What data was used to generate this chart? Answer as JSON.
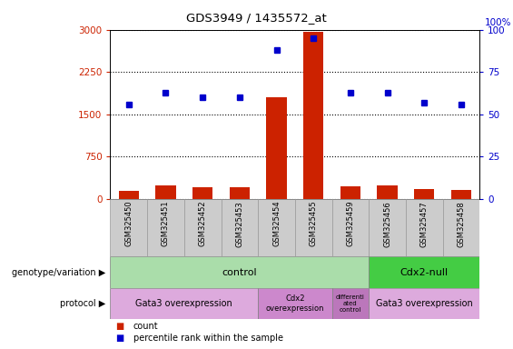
{
  "title": "GDS3949 / 1435572_at",
  "samples": [
    "GSM325450",
    "GSM325451",
    "GSM325452",
    "GSM325453",
    "GSM325454",
    "GSM325455",
    "GSM325459",
    "GSM325456",
    "GSM325457",
    "GSM325458"
  ],
  "count": [
    150,
    245,
    215,
    215,
    1810,
    2960,
    230,
    240,
    175,
    155
  ],
  "percentile": [
    56,
    63,
    60,
    60,
    88,
    95,
    63,
    63,
    57,
    56
  ],
  "ylim_left": [
    0,
    3000
  ],
  "ylim_right": [
    0,
    100
  ],
  "yticks_left": [
    0,
    750,
    1500,
    2250,
    3000
  ],
  "yticks_right": [
    0,
    25,
    50,
    75,
    100
  ],
  "bar_color": "#cc2200",
  "dot_color": "#0000cc",
  "bg_color": "#ffffff",
  "genotype_control_color": "#aaddaa",
  "genotype_cdx2_color": "#44cc44",
  "protocol_gata3_color": "#ddaadd",
  "protocol_cdx2_color": "#cc88cc",
  "protocol_diff_color": "#bb77bb",
  "legend_count_label": "count",
  "legend_pct_label": "percentile rank within the sample",
  "xlabel_genotype": "genotype/variation",
  "xlabel_protocol": "protocol",
  "tick_area_color": "#cccccc",
  "tick_border_color": "#999999"
}
